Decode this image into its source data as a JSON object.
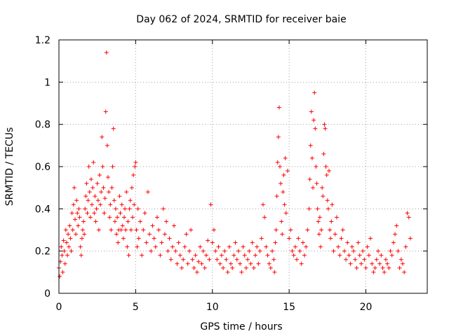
{
  "chart_data": {
    "type": "scatter",
    "title": "Day 062 of 2024, SRMTID for receiver baie",
    "xlabel": "GPS time / hours",
    "ylabel": "SRMTID / TECUs",
    "xlim": [
      0,
      24
    ],
    "ylim": [
      0,
      1.2
    ],
    "xticks": [
      0,
      5,
      10,
      15,
      20
    ],
    "yticks": [
      0,
      0.2,
      0.4,
      0.6,
      0.8,
      1,
      1.2
    ],
    "ytick_labels": [
      "0",
      "0.2",
      "0.4",
      "0.6",
      "0.8",
      "1",
      "1.2"
    ],
    "grid": true,
    "marker": "+",
    "color": "#ff0000",
    "series": [
      {
        "name": "SRMTID",
        "note": "representative sample of the dense plotted points",
        "x": [
          0.0,
          0.05,
          0.1,
          0.15,
          0.2,
          0.25,
          0.3,
          0.35,
          0.4,
          0.45,
          0.5,
          0.55,
          0.6,
          0.65,
          0.7,
          0.75,
          0.8,
          0.85,
          0.9,
          0.95,
          1.0,
          1.05,
          1.1,
          1.15,
          1.2,
          1.25,
          1.3,
          1.35,
          1.4,
          1.45,
          1.5,
          1.55,
          1.6,
          1.65,
          1.7,
          1.75,
          1.8,
          1.85,
          1.9,
          1.95,
          2.0,
          2.05,
          2.1,
          2.15,
          2.2,
          2.25,
          2.3,
          2.35,
          2.4,
          2.45,
          2.5,
          2.55,
          2.6,
          2.65,
          2.7,
          2.75,
          2.8,
          2.85,
          2.9,
          2.95,
          3.0,
          3.05,
          3.1,
          3.15,
          3.2,
          3.25,
          3.3,
          3.35,
          3.4,
          3.45,
          3.5,
          3.55,
          3.6,
          3.65,
          3.7,
          3.75,
          3.8,
          3.85,
          3.9,
          3.95,
          4.0,
          4.05,
          4.1,
          4.15,
          4.2,
          4.25,
          4.3,
          4.35,
          4.4,
          4.45,
          4.5,
          4.55,
          4.6,
          4.65,
          4.7,
          4.75,
          4.8,
          4.85,
          4.9,
          4.95,
          5.0,
          5.05,
          5.1,
          5.15,
          5.2,
          5.3,
          5.4,
          5.5,
          5.6,
          5.7,
          5.8,
          5.9,
          6.0,
          6.1,
          6.2,
          6.3,
          6.4,
          6.5,
          6.6,
          6.7,
          6.8,
          6.9,
          7.0,
          7.1,
          7.2,
          7.3,
          7.4,
          7.5,
          7.6,
          7.7,
          7.8,
          7.9,
          8.0,
          8.1,
          8.2,
          8.3,
          8.4,
          8.5,
          8.6,
          8.7,
          8.8,
          8.9,
          9.0,
          9.1,
          9.2,
          9.3,
          9.4,
          9.5,
          9.6,
          9.7,
          9.8,
          9.9,
          10.0,
          10.1,
          10.2,
          10.3,
          10.4,
          10.5,
          10.6,
          10.7,
          10.8,
          10.9,
          11.0,
          11.1,
          11.2,
          11.3,
          11.4,
          11.5,
          11.6,
          11.7,
          11.8,
          11.9,
          12.0,
          12.1,
          12.2,
          12.3,
          12.4,
          12.5,
          12.6,
          12.7,
          12.8,
          12.9,
          13.0,
          13.1,
          13.2,
          13.3,
          13.4,
          13.5,
          13.6,
          13.7,
          13.8,
          13.9,
          14.0,
          14.05,
          14.1,
          14.15,
          14.2,
          14.25,
          14.3,
          14.35,
          14.4,
          14.45,
          14.5,
          14.55,
          14.6,
          14.65,
          14.7,
          14.75,
          14.8,
          14.9,
          15.0,
          15.1,
          15.2,
          15.3,
          15.4,
          15.5,
          15.6,
          15.7,
          15.8,
          15.9,
          16.0,
          16.1,
          16.2,
          16.3,
          16.35,
          16.4,
          16.45,
          16.5,
          16.55,
          16.6,
          16.65,
          16.7,
          16.75,
          16.8,
          16.85,
          16.9,
          16.95,
          17.0,
          17.05,
          17.1,
          17.15,
          17.2,
          17.25,
          17.3,
          17.35,
          17.4,
          17.45,
          17.5,
          17.55,
          17.6,
          17.65,
          17.7,
          17.75,
          17.8,
          17.9,
          18.0,
          18.1,
          18.2,
          18.3,
          18.4,
          18.5,
          18.6,
          18.7,
          18.8,
          18.9,
          19.0,
          19.1,
          19.2,
          19.3,
          19.4,
          19.5,
          19.6,
          19.7,
          19.8,
          19.9,
          20.0,
          20.1,
          20.2,
          20.3,
          20.4,
          20.5,
          20.6,
          20.7,
          20.8,
          20.9,
          21.0,
          21.1,
          21.2,
          21.3,
          21.4,
          21.5,
          21.6,
          21.7,
          21.8,
          21.9,
          22.0,
          22.1,
          22.2,
          22.3,
          22.4,
          22.5,
          22.6,
          22.7,
          22.8,
          22.9
        ],
        "y": [
          0.12,
          0.08,
          0.15,
          0.22,
          0.18,
          0.1,
          0.25,
          0.2,
          0.14,
          0.3,
          0.24,
          0.18,
          0.28,
          0.22,
          0.32,
          0.26,
          0.2,
          0.38,
          0.3,
          0.42,
          0.5,
          0.35,
          0.28,
          0.44,
          0.38,
          0.32,
          0.4,
          0.36,
          0.22,
          0.18,
          0.26,
          0.3,
          0.34,
          0.28,
          0.4,
          0.46,
          0.52,
          0.38,
          0.44,
          0.6,
          0.48,
          0.36,
          0.54,
          0.42,
          0.5,
          0.62,
          0.38,
          0.46,
          0.34,
          0.4,
          0.52,
          0.44,
          0.3,
          0.56,
          0.42,
          0.48,
          0.74,
          0.6,
          0.5,
          0.38,
          0.45,
          0.86,
          1.14,
          0.7,
          0.55,
          0.48,
          0.36,
          0.42,
          0.3,
          0.5,
          0.6,
          0.78,
          0.44,
          0.34,
          0.4,
          0.28,
          0.36,
          0.24,
          0.3,
          0.46,
          0.38,
          0.3,
          0.42,
          0.32,
          0.26,
          0.36,
          0.4,
          0.3,
          0.48,
          0.22,
          0.34,
          0.18,
          0.4,
          0.44,
          0.3,
          0.5,
          0.36,
          0.56,
          0.42,
          0.6,
          0.62,
          0.3,
          0.22,
          0.4,
          0.26,
          0.34,
          0.18,
          0.3,
          0.38,
          0.24,
          0.48,
          0.28,
          0.2,
          0.32,
          0.26,
          0.22,
          0.36,
          0.3,
          0.18,
          0.24,
          0.4,
          0.28,
          0.34,
          0.2,
          0.26,
          0.16,
          0.22,
          0.32,
          0.2,
          0.14,
          0.24,
          0.18,
          0.12,
          0.16,
          0.22,
          0.28,
          0.14,
          0.2,
          0.3,
          0.16,
          0.12,
          0.18,
          0.1,
          0.15,
          0.22,
          0.14,
          0.2,
          0.12,
          0.18,
          0.25,
          0.16,
          0.42,
          0.24,
          0.3,
          0.2,
          0.16,
          0.22,
          0.14,
          0.18,
          0.12,
          0.2,
          0.16,
          0.1,
          0.22,
          0.14,
          0.12,
          0.18,
          0.24,
          0.16,
          0.2,
          0.14,
          0.1,
          0.22,
          0.18,
          0.12,
          0.16,
          0.2,
          0.14,
          0.24,
          0.12,
          0.18,
          0.22,
          0.14,
          0.2,
          0.26,
          0.42,
          0.36,
          0.22,
          0.18,
          0.14,
          0.12,
          0.2,
          0.16,
          0.1,
          0.24,
          0.3,
          0.46,
          0.62,
          0.74,
          0.88,
          0.6,
          0.52,
          0.34,
          0.28,
          0.48,
          0.56,
          0.42,
          0.64,
          0.38,
          0.58,
          0.26,
          0.3,
          0.2,
          0.18,
          0.22,
          0.16,
          0.26,
          0.2,
          0.14,
          0.24,
          0.18,
          0.22,
          0.3,
          0.4,
          0.54,
          0.7,
          0.86,
          0.64,
          0.5,
          0.82,
          0.95,
          0.78,
          0.6,
          0.52,
          0.4,
          0.34,
          0.28,
          0.36,
          0.22,
          0.3,
          0.5,
          0.46,
          0.66,
          0.8,
          0.78,
          0.6,
          0.56,
          0.44,
          0.4,
          0.58,
          0.3,
          0.26,
          0.34,
          0.42,
          0.2,
          0.28,
          0.36,
          0.22,
          0.18,
          0.26,
          0.3,
          0.2,
          0.16,
          0.24,
          0.18,
          0.14,
          0.22,
          0.2,
          0.16,
          0.12,
          0.24,
          0.18,
          0.14,
          0.2,
          0.16,
          0.12,
          0.22,
          0.18,
          0.26,
          0.14,
          0.1,
          0.12,
          0.16,
          0.2,
          0.14,
          0.18,
          0.12,
          0.1,
          0.16,
          0.14,
          0.12,
          0.2,
          0.18,
          0.24,
          0.28,
          0.32,
          0.2,
          0.12,
          0.16,
          0.14,
          0.1,
          0.22,
          0.38,
          0.36,
          0.26
        ]
      }
    ]
  }
}
